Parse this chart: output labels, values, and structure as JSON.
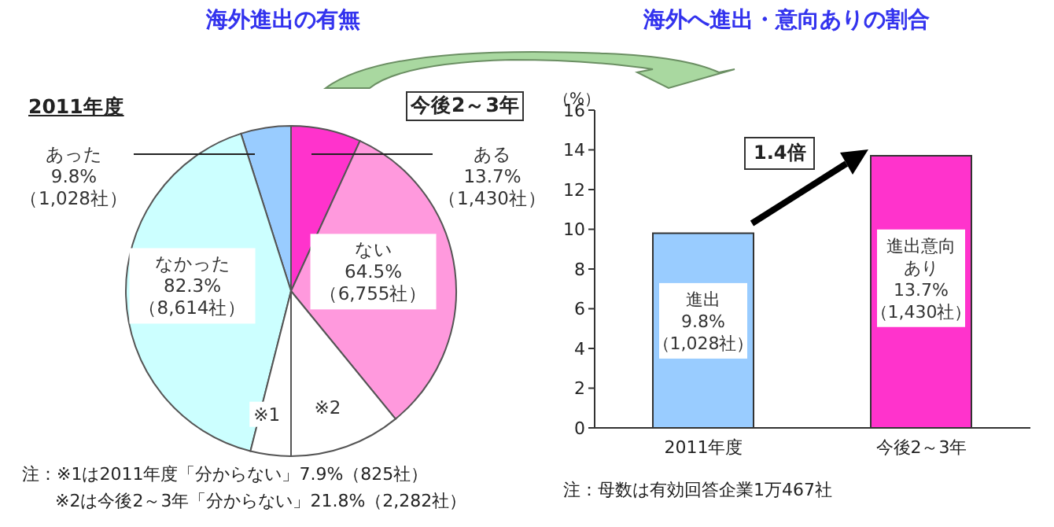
{
  "chart_data": [
    {
      "type": "pie",
      "title": "海外進出の有無",
      "subtitle": "2011年度",
      "categories": [
        "あった",
        "なかった",
        "※1"
      ],
      "values": [
        9.8,
        82.3,
        7.9
      ],
      "colors": [
        "#99ccff",
        "#ccffff",
        "#ffffff"
      ],
      "value_labels": [
        "9.8%\n（1,028社）",
        "82.3%\n（8,614社）",
        null
      ],
      "annotations": [
        "注：※1は2011年度「分からない」7.9%（825社）",
        "※2は今後2～3年「分からない」21.8%（2,282社）"
      ]
    },
    {
      "type": "pie",
      "title": "今後2～3年",
      "categories": [
        "ある",
        "ない",
        "※2"
      ],
      "values": [
        13.7,
        64.5,
        21.8
      ],
      "colors": [
        "#ff33cc",
        "#ff99dd",
        "#ffffff"
      ],
      "value_labels": [
        "13.7%\n（1,430社）",
        "64.5%\n（6,755社）",
        null
      ]
    },
    {
      "type": "bar",
      "title": "海外へ進出・意向ありの割合",
      "ylabel": "（%）",
      "categories": [
        "2011年度",
        "今後2～3年"
      ],
      "values": [
        9.8,
        13.7
      ],
      "colors": [
        "#99ccff",
        "#ff33cc"
      ],
      "value_labels": [
        "進出\n9.8%\n（1,028社）",
        "進出意向あり\n13.7%\n（1,430社）"
      ],
      "ylim": [
        0,
        16
      ],
      "yticks": [
        0,
        2,
        4,
        6,
        8,
        10,
        12,
        14,
        16
      ],
      "annotations": [
        "1.4倍",
        "注：母数は有効回答企業1万467社"
      ]
    }
  ]
}
